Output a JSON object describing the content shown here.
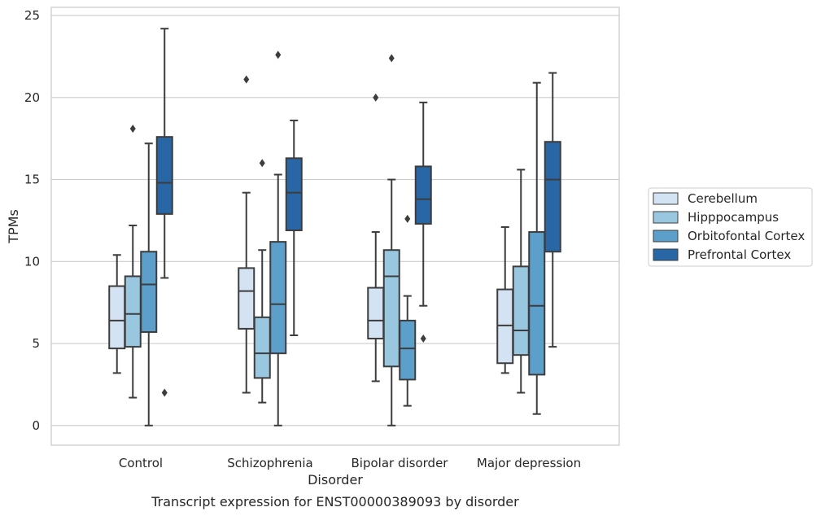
{
  "caption": "Transcript expression for ENST00000389093 by disorder",
  "chart_data": {
    "type": "box",
    "xlabel": "Disorder",
    "ylabel": "TPMs",
    "ylim": [
      -1.2,
      25.5
    ],
    "yticks": [
      0,
      5,
      10,
      15,
      20,
      25
    ],
    "grid": "horizontal",
    "legend_position": "right",
    "categories": [
      "Control",
      "Schizophrenia",
      "Bipolar disorder",
      "Major depression"
    ],
    "series": [
      {
        "name": "Cerebellum",
        "color": "#d3e3f3",
        "boxes": [
          {
            "whisker_low": 3.2,
            "q1": 4.7,
            "median": 6.4,
            "q3": 8.5,
            "whisker_high": 10.4,
            "outliers": []
          },
          {
            "whisker_low": 2.0,
            "q1": 5.9,
            "median": 8.2,
            "q3": 9.6,
            "whisker_high": 14.2,
            "outliers": [
              21.1
            ]
          },
          {
            "whisker_low": 2.7,
            "q1": 5.3,
            "median": 6.4,
            "q3": 8.4,
            "whisker_high": 11.8,
            "outliers": [
              20.0
            ]
          },
          {
            "whisker_low": 3.2,
            "q1": 3.8,
            "median": 6.1,
            "q3": 8.3,
            "whisker_high": 12.1,
            "outliers": []
          }
        ]
      },
      {
        "name": "Hipppocampus",
        "color": "#9ac7e0",
        "boxes": [
          {
            "whisker_low": 1.7,
            "q1": 4.8,
            "median": 6.8,
            "q3": 9.1,
            "whisker_high": 12.2,
            "outliers": [
              18.1
            ]
          },
          {
            "whisker_low": 1.4,
            "q1": 2.9,
            "median": 4.4,
            "q3": 6.6,
            "whisker_high": 10.7,
            "outliers": [
              16.0
            ]
          },
          {
            "whisker_low": 0.0,
            "q1": 3.6,
            "median": 9.1,
            "q3": 10.7,
            "whisker_high": 15.0,
            "outliers": [
              22.4
            ]
          },
          {
            "whisker_low": 2.0,
            "q1": 4.3,
            "median": 5.8,
            "q3": 9.7,
            "whisker_high": 15.6,
            "outliers": []
          }
        ]
      },
      {
        "name": "Orbitofontal Cortex",
        "color": "#5b9fca",
        "boxes": [
          {
            "whisker_low": 0.0,
            "q1": 5.7,
            "median": 8.6,
            "q3": 10.6,
            "whisker_high": 17.2,
            "outliers": []
          },
          {
            "whisker_low": 0.0,
            "q1": 4.4,
            "median": 7.4,
            "q3": 11.2,
            "whisker_high": 15.3,
            "outliers": [
              22.6
            ]
          },
          {
            "whisker_low": 1.2,
            "q1": 2.8,
            "median": 4.7,
            "q3": 6.4,
            "whisker_high": 7.9,
            "outliers": [
              12.6
            ]
          },
          {
            "whisker_low": 0.7,
            "q1": 3.1,
            "median": 7.3,
            "q3": 11.8,
            "whisker_high": 20.9,
            "outliers": []
          }
        ]
      },
      {
        "name": "Prefrontal Cortex",
        "color": "#2866a6",
        "boxes": [
          {
            "whisker_low": 9.0,
            "q1": 12.9,
            "median": 14.8,
            "q3": 17.6,
            "whisker_high": 24.2,
            "outliers": [
              2.0
            ]
          },
          {
            "whisker_low": 5.5,
            "q1": 11.9,
            "median": 14.2,
            "q3": 16.3,
            "whisker_high": 18.6,
            "outliers": []
          },
          {
            "whisker_low": 7.3,
            "q1": 12.3,
            "median": 13.8,
            "q3": 15.8,
            "whisker_high": 19.7,
            "outliers": [
              5.3
            ]
          },
          {
            "whisker_low": 4.8,
            "q1": 10.6,
            "median": 15.0,
            "q3": 17.3,
            "whisker_high": 21.5,
            "outliers": []
          }
        ]
      }
    ]
  }
}
